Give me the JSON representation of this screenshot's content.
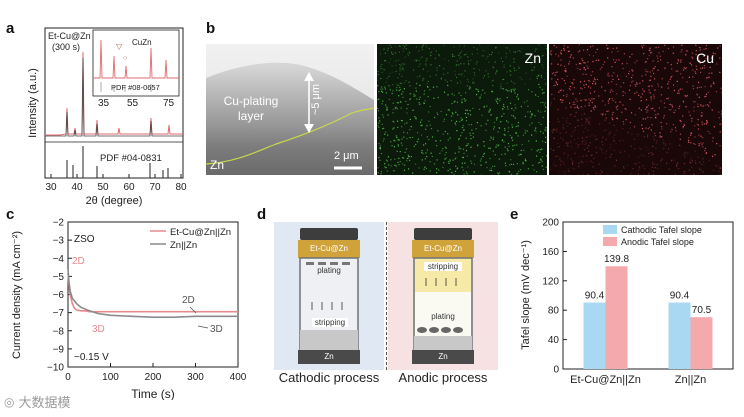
{
  "panels": {
    "a": {
      "label": "a",
      "sample_label": "Et-Cu@Zn",
      "sample_sub": "(300 s)",
      "ylabel": "Intensity (a.u.)",
      "xlabel": "2θ (degree)",
      "xticks": [
        "30",
        "40",
        "50",
        "60",
        "70",
        "80"
      ],
      "ref_label": "PDF #04-0831",
      "inset": {
        "phase": "CuZn",
        "ref_label": "PDF #08-0657",
        "xticks": [
          "35",
          "55",
          "75"
        ]
      }
    },
    "b": {
      "label": "b",
      "annotations": {
        "plating_layer": "Cu-plating layer",
        "substrate": "Zn",
        "thickness": "~5 μm",
        "scale_bar": "2 μm"
      },
      "map_zn": "Zn",
      "map_cu": "Cu"
    },
    "c": {
      "label": "c",
      "ylabel": "Current density (mA cm⁻²)",
      "xlabel": "Time (s)",
      "electrolyte": "ZSO",
      "voltage": "−0.15 V",
      "yticks": [
        "−2",
        "−3",
        "−4",
        "−5",
        "−6",
        "−7",
        "−8",
        "−9",
        "−10"
      ],
      "xticks": [
        "0",
        "100",
        "200",
        "300",
        "400"
      ],
      "legend": [
        "Et-Cu@Zn||Zn",
        "Zn||Zn"
      ],
      "annotations": [
        "2D",
        "3D",
        "2D",
        "3D"
      ]
    },
    "d": {
      "label": "d",
      "cathodic": {
        "caption": "Cathodic process",
        "top_electrode": "Et-Cu@Zn",
        "top_text": "plating",
        "bottom_text": "stripping",
        "bottom_electrode": "Zn"
      },
      "anodic": {
        "caption": "Anodic process",
        "top_electrode": "Et-Cu@Zn",
        "top_text": "stripping",
        "bottom_text": "plating",
        "bottom_electrode": "Zn"
      }
    },
    "e": {
      "label": "e",
      "legend": [
        "Cathodic Tafel slope",
        "Anodic Tafel slope"
      ]
    }
  },
  "watermark": "大数据模",
  "chart_data": [
    {
      "type": "line",
      "panel": "c",
      "xlabel": "Time (s)",
      "ylabel": "Current density (mA cm⁻²)",
      "xlim": [
        0,
        400
      ],
      "ylim": [
        -10,
        -2
      ],
      "series": [
        {
          "name": "Et-Cu@Zn||Zn",
          "color": "#e8898d",
          "x": [
            0,
            2,
            5,
            10,
            15,
            20,
            30,
            40,
            50,
            70,
            100,
            150,
            200,
            250,
            300,
            350,
            400
          ],
          "y": [
            -4.8,
            -5.4,
            -6.0,
            -6.5,
            -6.75,
            -6.85,
            -6.9,
            -6.9,
            -6.95,
            -6.95,
            -6.95,
            -6.95,
            -6.95,
            -6.95,
            -6.95,
            -6.95,
            -6.95
          ]
        },
        {
          "name": "Zn||Zn",
          "color": "#8a8a8a",
          "x": [
            0,
            2,
            5,
            10,
            20,
            30,
            50,
            70,
            100,
            150,
            200,
            250,
            300,
            350,
            400
          ],
          "y": [
            -4.6,
            -5.2,
            -5.8,
            -6.2,
            -6.5,
            -6.7,
            -6.9,
            -7.05,
            -7.15,
            -7.2,
            -7.25,
            -7.25,
            -7.2,
            -7.2,
            -7.2
          ]
        }
      ]
    },
    {
      "type": "bar",
      "panel": "e",
      "categories": [
        "Et-Cu@Zn||Zn",
        "Zn||Zn"
      ],
      "ylabel": "Tafel slope (mV dec⁻¹)",
      "ylim": [
        0,
        200
      ],
      "yticks": [
        0,
        40,
        80,
        120,
        160,
        200
      ],
      "series": [
        {
          "name": "Cathodic Tafel slope",
          "color": "#a8d8f2",
          "values": [
            90.4,
            90.4
          ]
        },
        {
          "name": "Anodic Tafel slope",
          "color": "#f4a9ad",
          "values": [
            139.8,
            70.5
          ]
        }
      ]
    }
  ]
}
